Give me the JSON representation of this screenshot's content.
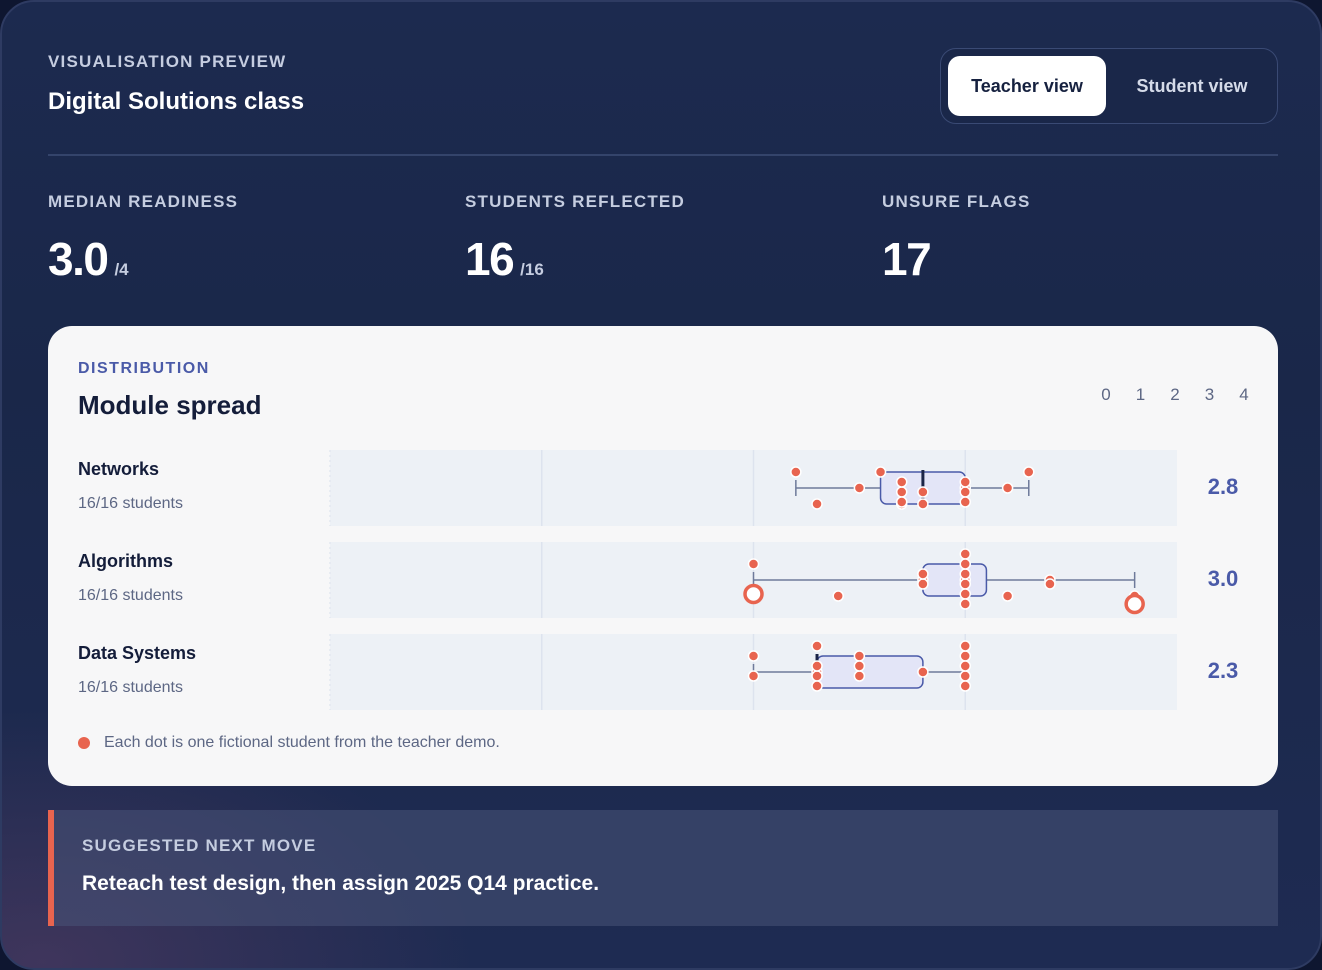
{
  "header": {
    "eyebrow": "VISUALISATION PREVIEW",
    "title": "Digital Solutions class",
    "toggle": {
      "teacher_label": "Teacher view",
      "student_label": "Student view",
      "active": "teacher"
    }
  },
  "stats": [
    {
      "label": "MEDIAN READINESS",
      "value": "3.0",
      "suffix": "/4"
    },
    {
      "label": "STUDENTS REFLECTED",
      "value": "16",
      "suffix": "/16"
    },
    {
      "label": "UNSURE FLAGS",
      "value": "17",
      "suffix": ""
    }
  ],
  "distribution": {
    "eyebrow": "DISTRIBUTION",
    "title": "Module spread",
    "legend_text": "Each dot is one fictional student from the teacher demo."
  },
  "chart_data": {
    "type": "box",
    "xlim": [
      0,
      4
    ],
    "ticks": [
      "0",
      "1",
      "2",
      "3",
      "4"
    ],
    "colors": {
      "dot": "#e8644f",
      "box": "#4a5aa8",
      "box_fill": "#e3e5f7",
      "band": "#edf1f6"
    },
    "rows": [
      {
        "name": "Networks",
        "sub": "16/16 students",
        "median_label": "2.8",
        "whisker_low": 2.2,
        "q1": 2.6,
        "median": 2.8,
        "q3": 3.0,
        "whisker_high": 3.3,
        "outliers": [],
        "points": [
          2.2,
          2.3,
          2.5,
          2.6,
          2.7,
          2.7,
          2.7,
          2.8,
          3.0,
          3.0,
          3.0,
          3.2,
          3.3,
          2.8,
          2.7,
          3.0
        ]
      },
      {
        "name": "Algorithms",
        "sub": "16/16 students",
        "median_label": "3.0",
        "whisker_low": 2.0,
        "q1": 2.8,
        "median": 3.0,
        "q3": 3.1,
        "whisker_high": 3.8,
        "outliers": [
          2.0,
          3.8
        ],
        "points": [
          2.0,
          2.4,
          2.8,
          2.8,
          2.8,
          3.0,
          3.0,
          3.0,
          3.0,
          3.0,
          3.2,
          3.4,
          3.4,
          3.8,
          3.0,
          3.0
        ]
      },
      {
        "name": "Data Systems",
        "sub": "16/16 students",
        "median_label": "2.3",
        "whisker_low": 2.0,
        "q1": 2.3,
        "median": 2.3,
        "q3": 2.8,
        "whisker_high": 3.0,
        "outliers": [],
        "points": [
          2.0,
          2.0,
          2.3,
          2.3,
          2.3,
          2.3,
          2.5,
          2.5,
          2.8,
          3.0,
          3.0,
          3.0,
          3.0,
          3.0,
          2.3,
          2.5
        ]
      }
    ]
  },
  "next_move": {
    "eyebrow": "SUGGESTED NEXT MOVE",
    "text": "Reteach test design, then assign 2025 Q14 practice."
  }
}
